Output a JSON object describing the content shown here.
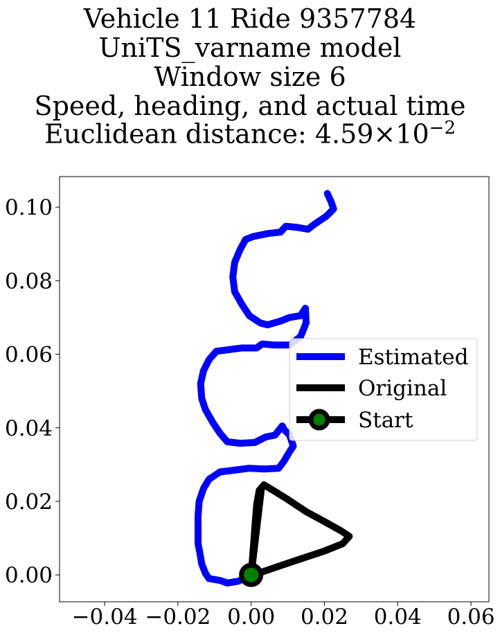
{
  "chart_data": {
    "type": "line",
    "title_lines": [
      "Vehicle 11 Ride 9357784",
      "UniTS_varname model",
      "Window size 6",
      "Speed, heading, and actual time"
    ],
    "title_metric_prefix": "Euclidean distance: ",
    "title_metric_mantissa": "4.59",
    "title_metric_times": "×10",
    "title_metric_exponent": "−2",
    "xlim": [
      -0.0523,
      0.0649
    ],
    "ylim": [
      -0.0073,
      0.1083
    ],
    "xticks": [
      -0.04,
      -0.02,
      0.0,
      0.02,
      0.04,
      0.06
    ],
    "xtick_labels": [
      "−0.04",
      "−0.02",
      "0.00",
      "0.02",
      "0.04",
      "0.06"
    ],
    "yticks": [
      0.0,
      0.02,
      0.04,
      0.06,
      0.08,
      0.1
    ],
    "ytick_labels": [
      "0.00",
      "0.02",
      "0.04",
      "0.06",
      "0.08",
      "0.10"
    ],
    "grid": false,
    "legend": {
      "placement": "center-right",
      "entries": [
        {
          "label": "Estimated",
          "color": "#0000ff",
          "style": "line"
        },
        {
          "label": "Original",
          "color": "#000000",
          "style": "line"
        },
        {
          "label": "Start",
          "color": "#000000",
          "marker_color": "#008000",
          "style": "line-marker"
        }
      ]
    },
    "series": [
      {
        "name": "Estimated",
        "color": "#0000ff",
        "points": [
          [
            0.0,
            0.0
          ],
          [
            -0.0035,
            -0.0017
          ],
          [
            -0.0065,
            -0.0022
          ],
          [
            -0.0085,
            -0.0015
          ],
          [
            -0.0115,
            -0.001
          ],
          [
            -0.0125,
            0.0005
          ],
          [
            -0.0135,
            0.003
          ],
          [
            -0.014,
            0.006
          ],
          [
            -0.0145,
            0.0085
          ],
          [
            -0.0145,
            0.012
          ],
          [
            -0.0145,
            0.016
          ],
          [
            -0.0142,
            0.02
          ],
          [
            -0.013,
            0.0235
          ],
          [
            -0.0115,
            0.026
          ],
          [
            -0.0085,
            0.028
          ],
          [
            -0.0045,
            0.0285
          ],
          [
            -0.0005,
            0.029
          ],
          [
            0.0035,
            0.0288
          ],
          [
            0.0075,
            0.029
          ],
          [
            0.009,
            0.031
          ],
          [
            0.0105,
            0.0335
          ],
          [
            0.0115,
            0.035
          ],
          [
            0.0105,
            0.038
          ],
          [
            0.009,
            0.0395
          ],
          [
            0.0085,
            0.0405
          ],
          [
            0.0065,
            0.038
          ],
          [
            0.004,
            0.0375
          ],
          [
            0.001,
            0.036
          ],
          [
            -0.003,
            0.0358
          ],
          [
            -0.0065,
            0.0362
          ],
          [
            -0.0085,
            0.0385
          ],
          [
            -0.0105,
            0.0415
          ],
          [
            -0.0125,
            0.045
          ],
          [
            -0.0135,
            0.048
          ],
          [
            -0.0138,
            0.052
          ],
          [
            -0.013,
            0.0555
          ],
          [
            -0.0115,
            0.0585
          ],
          [
            -0.0095,
            0.0608
          ],
          [
            -0.0065,
            0.0612
          ],
          [
            -0.0025,
            0.0617
          ],
          [
            0.0015,
            0.0617
          ],
          [
            0.003,
            0.0628
          ],
          [
            0.0065,
            0.0625
          ],
          [
            0.0105,
            0.0625
          ],
          [
            0.0135,
            0.0648
          ],
          [
            0.015,
            0.0685
          ],
          [
            0.0148,
            0.0725
          ],
          [
            0.0135,
            0.0705
          ],
          [
            0.0105,
            0.07
          ],
          [
            0.008,
            0.069
          ],
          [
            0.0045,
            0.068
          ],
          [
            0.0025,
            0.0685
          ],
          [
            -0.0005,
            0.0705
          ],
          [
            -0.0025,
            0.0735
          ],
          [
            -0.0045,
            0.077
          ],
          [
            -0.005,
            0.081
          ],
          [
            -0.0045,
            0.085
          ],
          [
            -0.003,
            0.0885
          ],
          [
            -0.0015,
            0.0912
          ],
          [
            0.0005,
            0.092
          ],
          [
            0.0045,
            0.0928
          ],
          [
            0.008,
            0.0932
          ],
          [
            0.0095,
            0.0948
          ],
          [
            0.0125,
            0.0945
          ],
          [
            0.0155,
            0.094
          ],
          [
            0.0175,
            0.0955
          ],
          [
            0.0205,
            0.0975
          ],
          [
            0.0225,
            0.0995
          ],
          [
            0.0218,
            0.1015
          ],
          [
            0.0208,
            0.1037
          ]
        ]
      },
      {
        "name": "Original",
        "color": "#000000",
        "points": [
          [
            0.0,
            0.0
          ],
          [
            0.0005,
            0.006
          ],
          [
            0.001,
            0.013
          ],
          [
            0.0015,
            0.019
          ],
          [
            0.0022,
            0.023
          ],
          [
            0.0035,
            0.0245
          ],
          [
            0.006,
            0.023
          ],
          [
            0.01,
            0.0205
          ],
          [
            0.015,
            0.0172
          ],
          [
            0.02,
            0.0145
          ],
          [
            0.0245,
            0.012
          ],
          [
            0.0268,
            0.0105
          ],
          [
            0.025,
            0.0085
          ],
          [
            0.02,
            0.0065
          ],
          [
            0.014,
            0.0045
          ],
          [
            0.008,
            0.0025
          ],
          [
            0.003,
            0.0008
          ],
          [
            0.0,
            0.0
          ],
          [
            0.0008,
            0.01
          ],
          [
            0.0018,
            0.0205
          ],
          [
            0.0028,
            0.0235
          ],
          [
            0.0,
            0.0
          ]
        ]
      }
    ],
    "start_point": {
      "name": "Start",
      "x": 0.0,
      "y": 0.0,
      "marker_color": "#008000"
    }
  }
}
